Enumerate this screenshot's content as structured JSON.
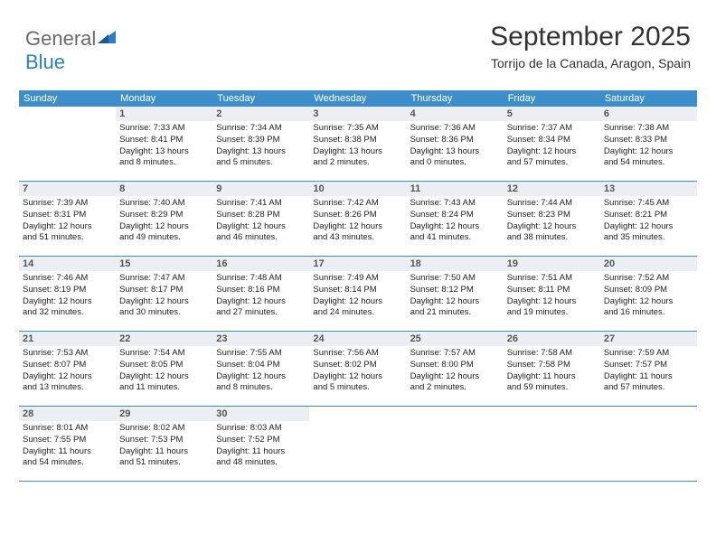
{
  "brand": {
    "name_gray": "General",
    "name_blue": "Blue"
  },
  "header": {
    "month_title": "September 2025",
    "location": "Torrijo de la Canada, Aragon, Spain"
  },
  "colors": {
    "header_band": "#3d8ec9",
    "daynum_bg": "#eceff1",
    "rule": "#3d8ec9",
    "logo_gray": "#6a6a6a",
    "logo_blue": "#2d7fc4"
  },
  "weekdays": [
    "Sunday",
    "Monday",
    "Tuesday",
    "Wednesday",
    "Thursday",
    "Friday",
    "Saturday"
  ],
  "weeks": [
    [
      {
        "blank": true
      },
      {
        "num": "1",
        "sunrise": "Sunrise: 7:33 AM",
        "sunset": "Sunset: 8:41 PM",
        "dl1": "Daylight: 13 hours",
        "dl2": "and 8 minutes."
      },
      {
        "num": "2",
        "sunrise": "Sunrise: 7:34 AM",
        "sunset": "Sunset: 8:39 PM",
        "dl1": "Daylight: 13 hours",
        "dl2": "and 5 minutes."
      },
      {
        "num": "3",
        "sunrise": "Sunrise: 7:35 AM",
        "sunset": "Sunset: 8:38 PM",
        "dl1": "Daylight: 13 hours",
        "dl2": "and 2 minutes."
      },
      {
        "num": "4",
        "sunrise": "Sunrise: 7:36 AM",
        "sunset": "Sunset: 8:36 PM",
        "dl1": "Daylight: 13 hours",
        "dl2": "and 0 minutes."
      },
      {
        "num": "5",
        "sunrise": "Sunrise: 7:37 AM",
        "sunset": "Sunset: 8:34 PM",
        "dl1": "Daylight: 12 hours",
        "dl2": "and 57 minutes."
      },
      {
        "num": "6",
        "sunrise": "Sunrise: 7:38 AM",
        "sunset": "Sunset: 8:33 PM",
        "dl1": "Daylight: 12 hours",
        "dl2": "and 54 minutes."
      }
    ],
    [
      {
        "num": "7",
        "sunrise": "Sunrise: 7:39 AM",
        "sunset": "Sunset: 8:31 PM",
        "dl1": "Daylight: 12 hours",
        "dl2": "and 51 minutes."
      },
      {
        "num": "8",
        "sunrise": "Sunrise: 7:40 AM",
        "sunset": "Sunset: 8:29 PM",
        "dl1": "Daylight: 12 hours",
        "dl2": "and 49 minutes."
      },
      {
        "num": "9",
        "sunrise": "Sunrise: 7:41 AM",
        "sunset": "Sunset: 8:28 PM",
        "dl1": "Daylight: 12 hours",
        "dl2": "and 46 minutes."
      },
      {
        "num": "10",
        "sunrise": "Sunrise: 7:42 AM",
        "sunset": "Sunset: 8:26 PM",
        "dl1": "Daylight: 12 hours",
        "dl2": "and 43 minutes."
      },
      {
        "num": "11",
        "sunrise": "Sunrise: 7:43 AM",
        "sunset": "Sunset: 8:24 PM",
        "dl1": "Daylight: 12 hours",
        "dl2": "and 41 minutes."
      },
      {
        "num": "12",
        "sunrise": "Sunrise: 7:44 AM",
        "sunset": "Sunset: 8:23 PM",
        "dl1": "Daylight: 12 hours",
        "dl2": "and 38 minutes."
      },
      {
        "num": "13",
        "sunrise": "Sunrise: 7:45 AM",
        "sunset": "Sunset: 8:21 PM",
        "dl1": "Daylight: 12 hours",
        "dl2": "and 35 minutes."
      }
    ],
    [
      {
        "num": "14",
        "sunrise": "Sunrise: 7:46 AM",
        "sunset": "Sunset: 8:19 PM",
        "dl1": "Daylight: 12 hours",
        "dl2": "and 32 minutes."
      },
      {
        "num": "15",
        "sunrise": "Sunrise: 7:47 AM",
        "sunset": "Sunset: 8:17 PM",
        "dl1": "Daylight: 12 hours",
        "dl2": "and 30 minutes."
      },
      {
        "num": "16",
        "sunrise": "Sunrise: 7:48 AM",
        "sunset": "Sunset: 8:16 PM",
        "dl1": "Daylight: 12 hours",
        "dl2": "and 27 minutes."
      },
      {
        "num": "17",
        "sunrise": "Sunrise: 7:49 AM",
        "sunset": "Sunset: 8:14 PM",
        "dl1": "Daylight: 12 hours",
        "dl2": "and 24 minutes."
      },
      {
        "num": "18",
        "sunrise": "Sunrise: 7:50 AM",
        "sunset": "Sunset: 8:12 PM",
        "dl1": "Daylight: 12 hours",
        "dl2": "and 21 minutes."
      },
      {
        "num": "19",
        "sunrise": "Sunrise: 7:51 AM",
        "sunset": "Sunset: 8:11 PM",
        "dl1": "Daylight: 12 hours",
        "dl2": "and 19 minutes."
      },
      {
        "num": "20",
        "sunrise": "Sunrise: 7:52 AM",
        "sunset": "Sunset: 8:09 PM",
        "dl1": "Daylight: 12 hours",
        "dl2": "and 16 minutes."
      }
    ],
    [
      {
        "num": "21",
        "sunrise": "Sunrise: 7:53 AM",
        "sunset": "Sunset: 8:07 PM",
        "dl1": "Daylight: 12 hours",
        "dl2": "and 13 minutes."
      },
      {
        "num": "22",
        "sunrise": "Sunrise: 7:54 AM",
        "sunset": "Sunset: 8:05 PM",
        "dl1": "Daylight: 12 hours",
        "dl2": "and 11 minutes."
      },
      {
        "num": "23",
        "sunrise": "Sunrise: 7:55 AM",
        "sunset": "Sunset: 8:04 PM",
        "dl1": "Daylight: 12 hours",
        "dl2": "and 8 minutes."
      },
      {
        "num": "24",
        "sunrise": "Sunrise: 7:56 AM",
        "sunset": "Sunset: 8:02 PM",
        "dl1": "Daylight: 12 hours",
        "dl2": "and 5 minutes."
      },
      {
        "num": "25",
        "sunrise": "Sunrise: 7:57 AM",
        "sunset": "Sunset: 8:00 PM",
        "dl1": "Daylight: 12 hours",
        "dl2": "and 2 minutes."
      },
      {
        "num": "26",
        "sunrise": "Sunrise: 7:58 AM",
        "sunset": "Sunset: 7:58 PM",
        "dl1": "Daylight: 11 hours",
        "dl2": "and 59 minutes."
      },
      {
        "num": "27",
        "sunrise": "Sunrise: 7:59 AM",
        "sunset": "Sunset: 7:57 PM",
        "dl1": "Daylight: 11 hours",
        "dl2": "and 57 minutes."
      }
    ],
    [
      {
        "num": "28",
        "sunrise": "Sunrise: 8:01 AM",
        "sunset": "Sunset: 7:55 PM",
        "dl1": "Daylight: 11 hours",
        "dl2": "and 54 minutes."
      },
      {
        "num": "29",
        "sunrise": "Sunrise: 8:02 AM",
        "sunset": "Sunset: 7:53 PM",
        "dl1": "Daylight: 11 hours",
        "dl2": "and 51 minutes."
      },
      {
        "num": "30",
        "sunrise": "Sunrise: 8:03 AM",
        "sunset": "Sunset: 7:52 PM",
        "dl1": "Daylight: 11 hours",
        "dl2": "and 48 minutes."
      },
      {
        "blank": true
      },
      {
        "blank": true
      },
      {
        "blank": true
      },
      {
        "blank": true
      }
    ]
  ]
}
